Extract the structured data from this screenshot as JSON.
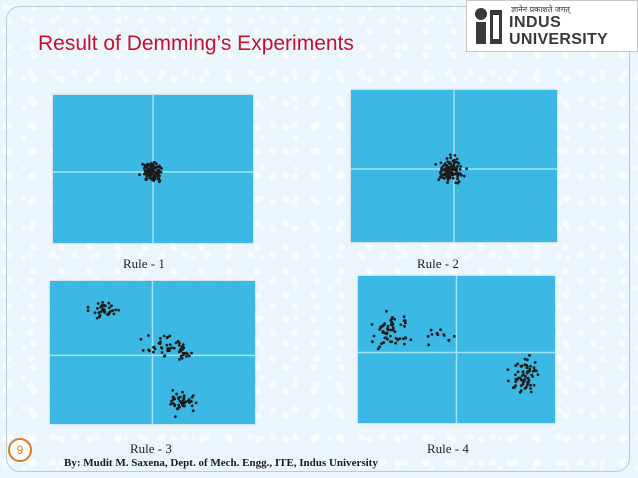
{
  "slide": {
    "title": "Result of Demming’s Experiments",
    "page_number": "9",
    "footer": "By: Mudit M. Saxena, Dept. of Mech. Engg., ITE, Indus University"
  },
  "logo": {
    "tagline": "ज्ञानेन प्रकाशते जगत्",
    "name_line1": "INDUS",
    "name_line2": "UNIVERSITY"
  },
  "colors": {
    "title": "#c8102e",
    "plot_background": "#3bb8e3",
    "plot_axis": "#9fe6f6",
    "dots": "#1b1b1b",
    "accent": "#e07a20"
  },
  "figures": [
    {
      "caption": "Rule - 1",
      "pattern": "tight-cluster-at-center"
    },
    {
      "caption": "Rule - 2",
      "pattern": "cluster-slightly-offset-from-center"
    },
    {
      "caption": "Rule - 3",
      "pattern": "drifting-scatter-spreading-across-quadrants"
    },
    {
      "caption": "Rule - 4",
      "pattern": "two-clusters-upper-left-and-lower-right"
    }
  ]
}
